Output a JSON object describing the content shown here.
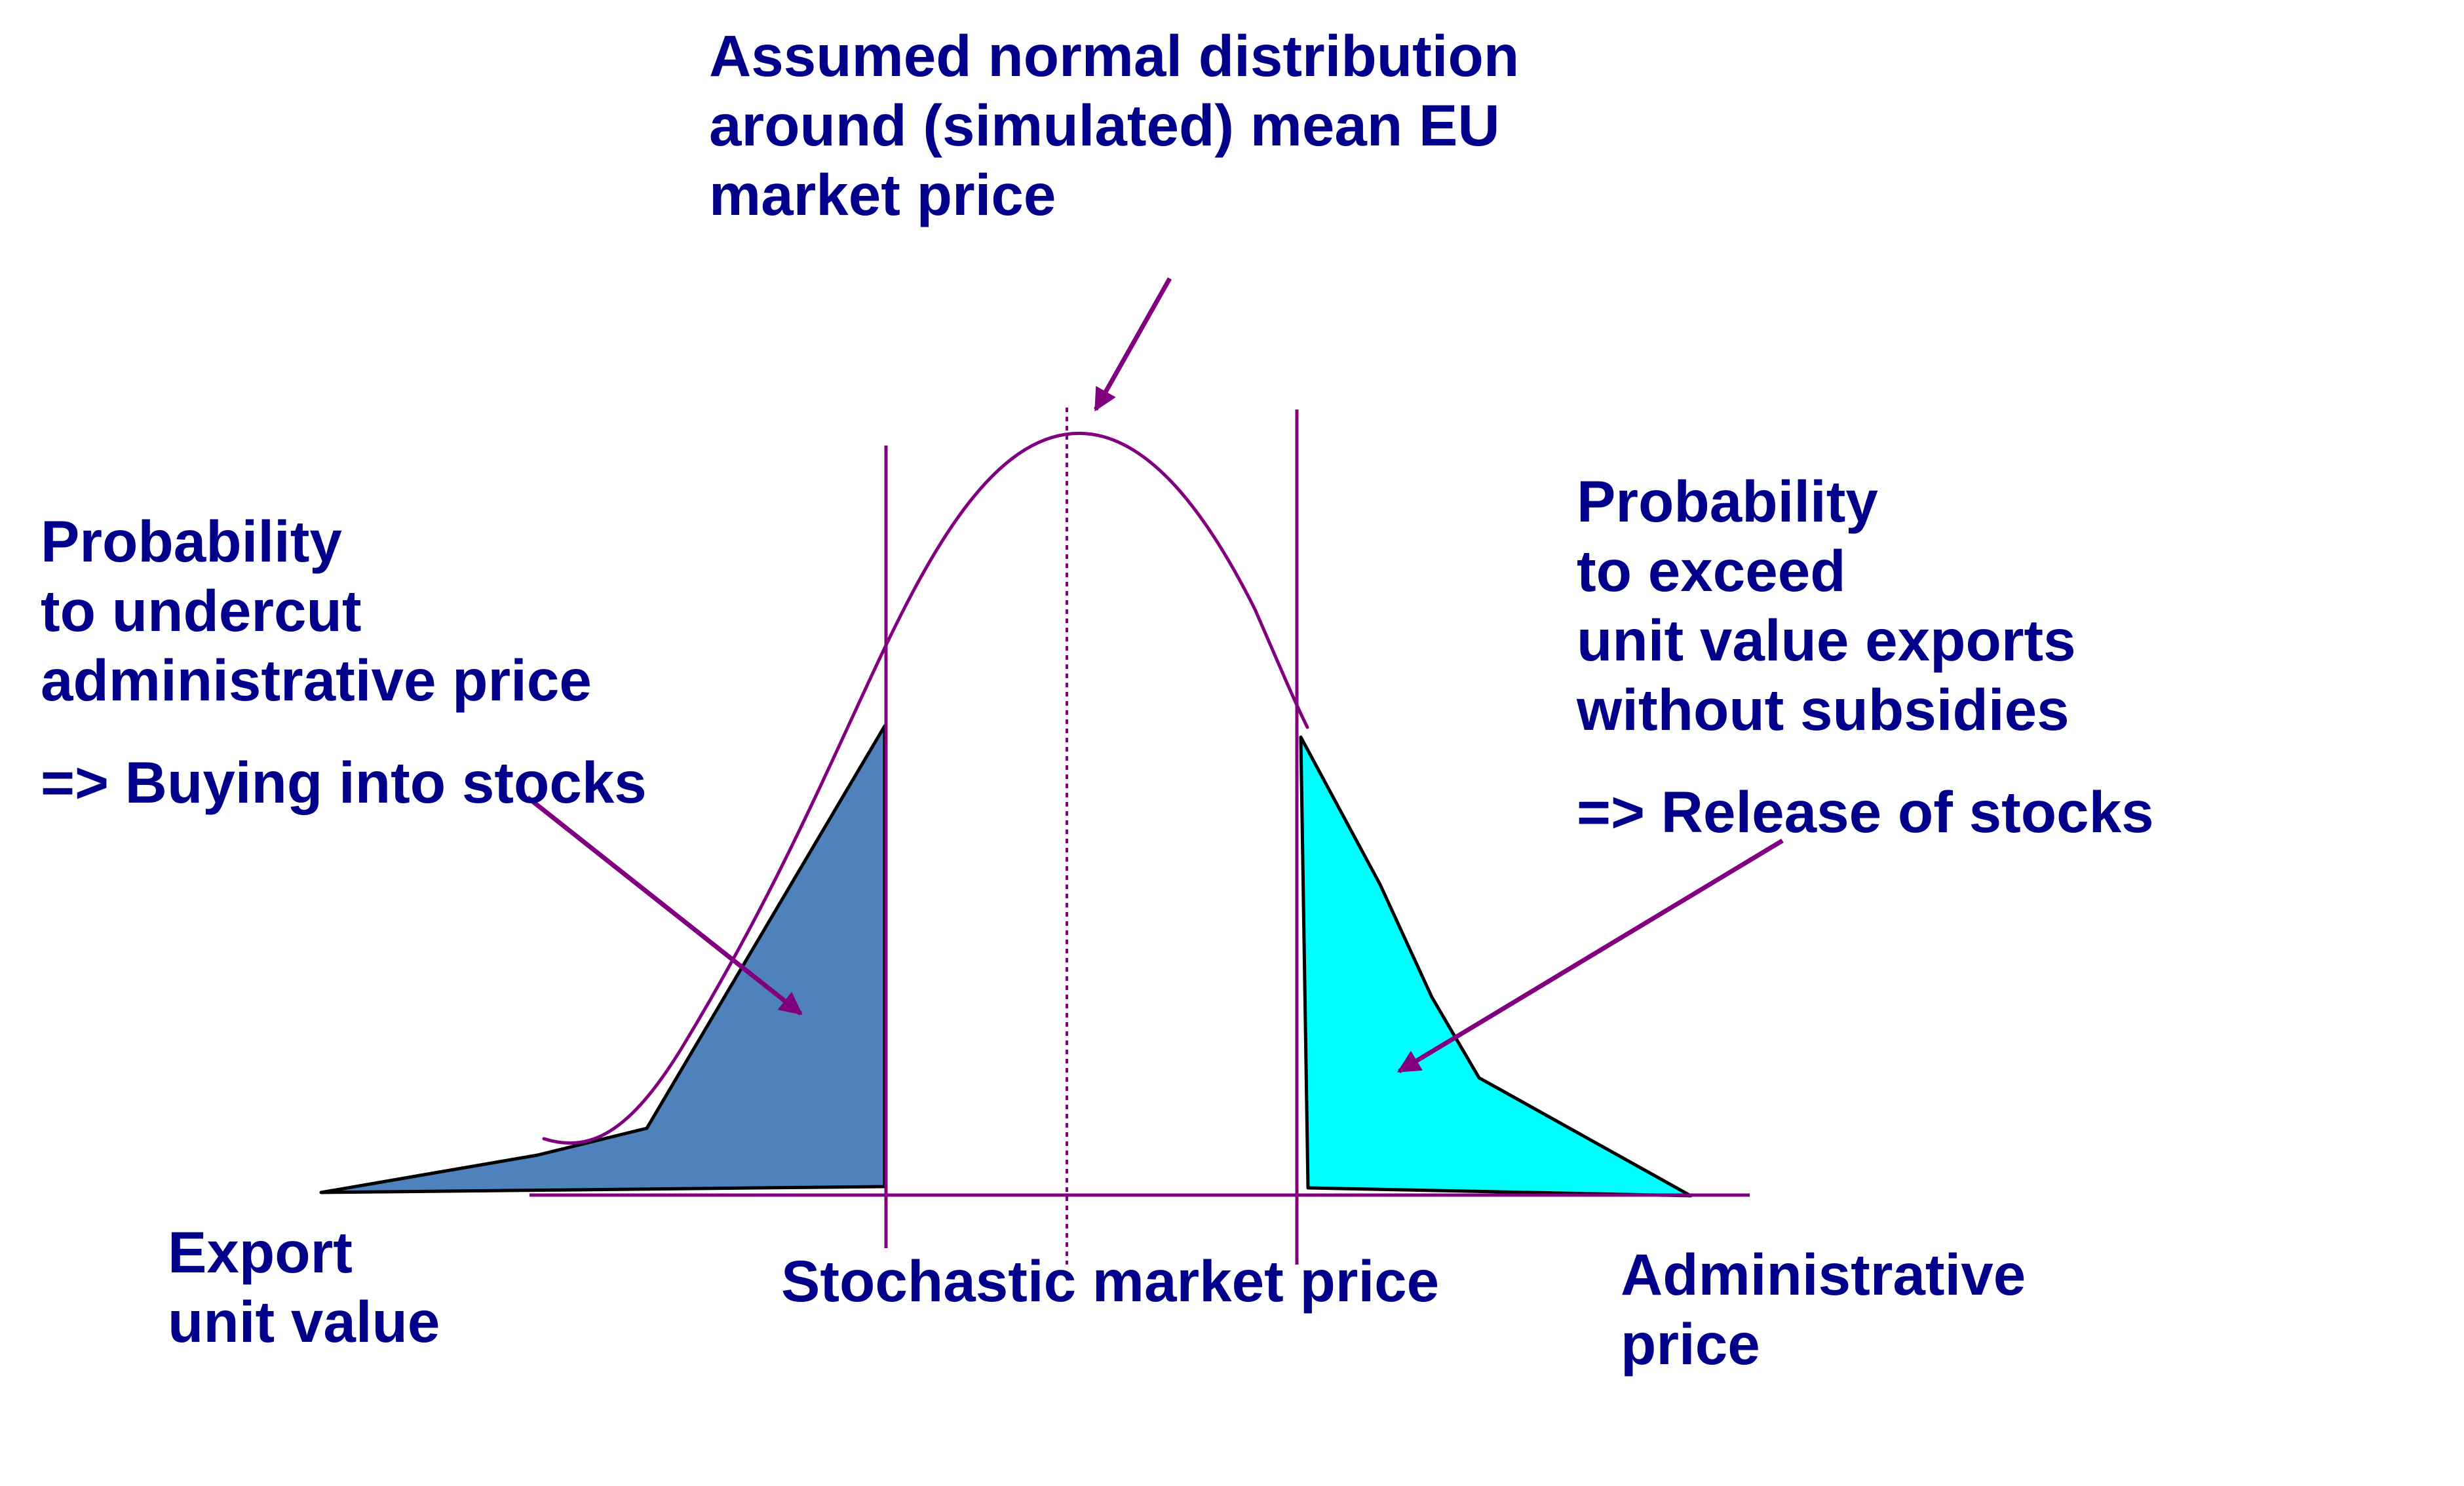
{
  "colors": {
    "text": "#00008B",
    "line": "#800080",
    "left_fill": "#4F81BD",
    "right_fill": "#00FFFF",
    "outline": "#000000"
  },
  "labels": {
    "title": [
      "Assumed normal distribution",
      "around (simulated) mean EU",
      "market price"
    ],
    "left": [
      "Probability",
      "to undercut",
      "administrative price"
    ],
    "left_action": "=> Buying into stocks",
    "right": [
      "Probability",
      "to exceed",
      "unit value exports",
      "without subsidies"
    ],
    "right_action": "=> Release of stocks",
    "export": [
      "Export",
      "unit value"
    ],
    "stochastic": "Stochastic market price",
    "admin": [
      "Administrative",
      "price"
    ]
  }
}
